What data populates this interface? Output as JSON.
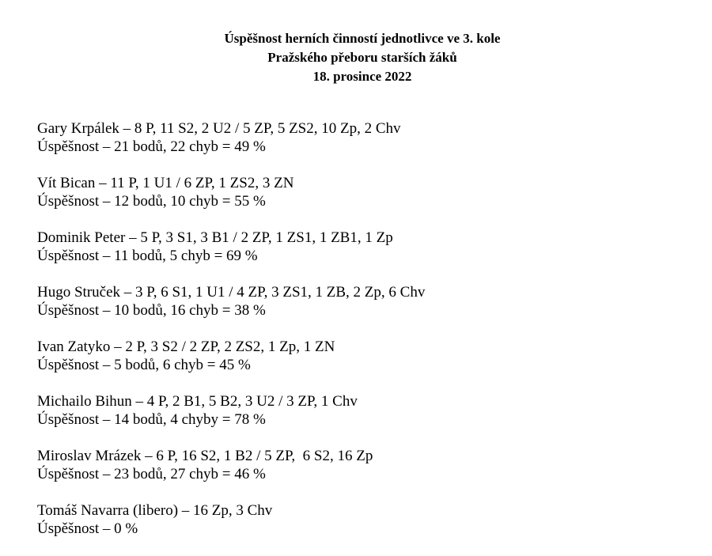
{
  "title": {
    "line1": "Úspěšnost herních činností jednotlivce ve 3. kole",
    "line2": "Pražského přeboru starších žáků",
    "line3": "18. prosince 2022"
  },
  "players": [
    {
      "stats": "Gary Krpálek – 8 P, 11 S2, 2 U2 / 5 ZP, 5 ZS2, 10 Zp, 2 Chv",
      "success": "Úspěšnost – 21 bodů, 22 chyb = 49 %"
    },
    {
      "stats": "Vít Bican – 11 P, 1 U1 / 6 ZP, 1 ZS2, 3 ZN",
      "success": "Úspěšnost – 12 bodů, 10 chyb = 55 %"
    },
    {
      "stats": "Dominik Peter – 5 P, 3 S1, 3 B1 / 2 ZP, 1 ZS1, 1 ZB1, 1 Zp",
      "success": "Úspěšnost – 11 bodů, 5 chyb = 69 %"
    },
    {
      "stats": "Hugo Struček – 3 P, 6 S1, 1 U1 / 4 ZP, 3 ZS1, 1 ZB, 2 Zp, 6 Chv",
      "success": "Úspěšnost – 10 bodů, 16 chyb = 38 %"
    },
    {
      "stats": "Ivan Zatyko – 2 P, 3 S2 / 2 ZP, 2 ZS2, 1 Zp, 1 ZN",
      "success": "Úspěšnost – 5 bodů, 6 chyb = 45 %"
    },
    {
      "stats": "Michailo Bihun – 4 P, 2 B1, 5 B2, 3 U2 / 3 ZP, 1 Chv",
      "success": "Úspěšnost – 14 bodů, 4 chyby = 78 %"
    },
    {
      "stats": "Miroslav Mrázek – 6 P, 16 S2, 1 B2 / 5 ZP,  6 S2, 16 Zp",
      "success": "Úspěšnost – 23 bodů, 27 chyb = 46 %"
    },
    {
      "stats": "Tomáš Navarra (libero) – 16 Zp, 3 Chv",
      "success": "Úspěšnost – 0 %"
    }
  ]
}
